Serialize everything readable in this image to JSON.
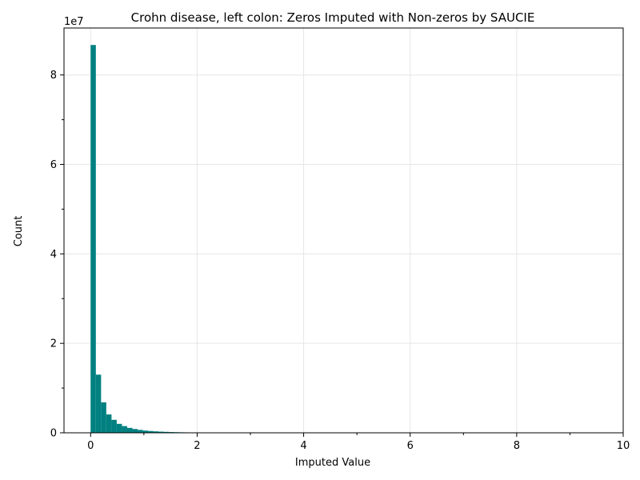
{
  "chart_data": {
    "type": "bar",
    "title": "Crohn disease, left colon: Zeros Imputed with Non-zeros by SAUCIE",
    "xlabel": "Imputed Value",
    "ylabel": "Count",
    "y_offset_text": "1e7",
    "xlim": [
      -0.5,
      10.0
    ],
    "ylim": [
      0,
      90500000.0
    ],
    "x_ticks": [
      0,
      2,
      4,
      6,
      8,
      10
    ],
    "x_tick_labels": [
      "0",
      "2",
      "4",
      "6",
      "8",
      "10"
    ],
    "y_ticks": [
      0,
      20000000,
      40000000,
      60000000,
      80000000
    ],
    "y_tick_labels": [
      "0",
      "2",
      "4",
      "6",
      "8"
    ],
    "grid": true,
    "color": "#008080",
    "bin_width": 0.098,
    "bin_starts": [
      0.0,
      0.098,
      0.196,
      0.294,
      0.392,
      0.49,
      0.588,
      0.686,
      0.784,
      0.882,
      0.98,
      1.078,
      1.176,
      1.274,
      1.372,
      1.47,
      1.568,
      1.666,
      1.764,
      1.862,
      1.96,
      2.058,
      2.156,
      2.254
    ],
    "values": [
      86700000,
      13000000,
      6800000,
      4100000,
      2900000,
      2000000,
      1500000,
      1100000,
      850000,
      650000,
      500000,
      400000,
      320000,
      260000,
      210000,
      170000,
      140000,
      115000,
      95000,
      80000,
      65000,
      50000,
      40000,
      30000
    ]
  }
}
